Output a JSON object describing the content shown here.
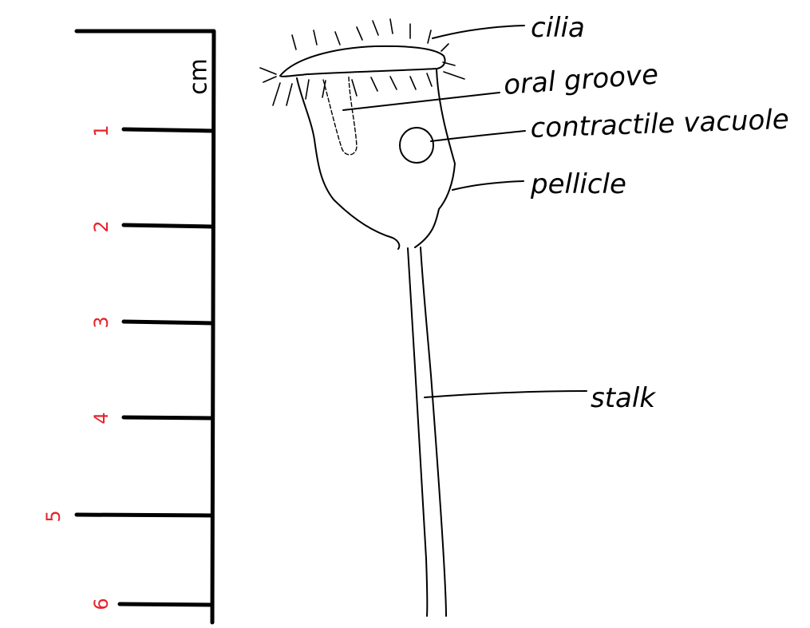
{
  "ruler": {
    "unit": "cm",
    "ticks": [
      "1",
      "2",
      "3",
      "4",
      "5",
      "6"
    ],
    "tick_color": "#e8222b"
  },
  "labels": {
    "cilia": "cilia",
    "oral_groove": "oral groove",
    "contractile_vacuole": "contractile vacuole",
    "pellicle": "pellicle",
    "stalk": "stalk"
  },
  "colors": {
    "ink": "#000000",
    "tick_numbers": "#e8222b",
    "background": "#ffffff"
  }
}
